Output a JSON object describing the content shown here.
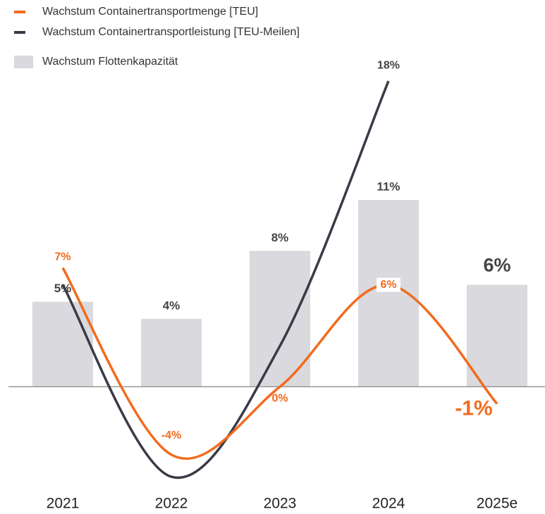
{
  "chart_data": {
    "type": "bar",
    "categories": [
      "2021",
      "2022",
      "2023",
      "2024",
      "2025e"
    ],
    "series": [
      {
        "name": "Wachstum Containertransportmenge [TEU]",
        "type": "line",
        "color": "#f26b1d",
        "values": [
          7,
          -4,
          0,
          6,
          -1
        ],
        "value_labels": [
          "7%",
          "-4%",
          "0%",
          "6%",
          "-1%"
        ]
      },
      {
        "name": "Wachstum Containertransportleistung [TEU-Meilen]",
        "type": "line",
        "color": "#3a3a46",
        "values": [
          6,
          -5.3,
          2.4,
          18,
          null
        ],
        "value_labels": [
          null,
          null,
          null,
          "18%",
          null
        ]
      },
      {
        "name": "Wachstum Flottenkapazität",
        "type": "bar",
        "color": "#d9d9de",
        "values": [
          5,
          4,
          8,
          11,
          6
        ],
        "value_labels": [
          "5%",
          "4%",
          "8%",
          "11%",
          "6%"
        ]
      }
    ],
    "ylim": [
      -6,
      19
    ]
  }
}
